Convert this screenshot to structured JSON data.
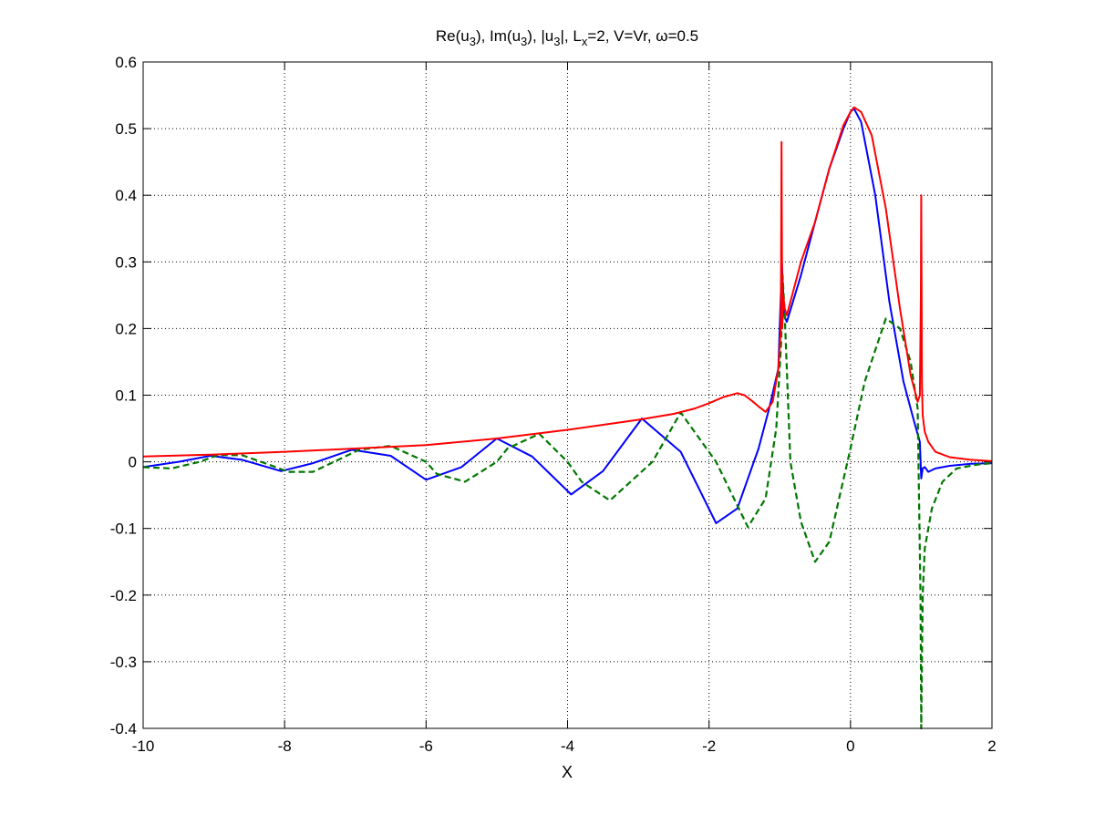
{
  "chart_data": {
    "type": "line",
    "title": {
      "parts": [
        "Re(u",
        "3",
        "), Im(u",
        "3",
        "), |u",
        "3",
        "|, L",
        "x",
        "=2,  V=Vr, ω=0.5"
      ]
    },
    "xlabel": "X",
    "ylabel": "",
    "xlim": [
      -10,
      2
    ],
    "ylim": [
      -0.4,
      0.6
    ],
    "xticks": [
      -10,
      -8,
      -6,
      -4,
      -2,
      0,
      2
    ],
    "yticks": [
      -0.4,
      -0.3,
      -0.2,
      -0.1,
      0,
      0.1,
      0.2,
      0.3,
      0.4,
      0.5,
      0.6
    ],
    "xtick_labels": [
      "-10",
      "-8",
      "-6",
      "-4",
      "-2",
      "0",
      "2"
    ],
    "ytick_labels": [
      "-0.4",
      "-0.3",
      "-0.2",
      "-0.1",
      "0",
      "0.1",
      "0.2",
      "0.3",
      "0.4",
      "0.5",
      "0.6"
    ],
    "grid": true,
    "series": [
      {
        "color": "#0000ff",
        "style": "solid",
        "x": [
          -10,
          -9.5,
          -9.05,
          -8.6,
          -8.05,
          -7.6,
          -7.05,
          -6.5,
          -6.0,
          -5.5,
          -5.0,
          -4.5,
          -3.95,
          -3.5,
          -2.95,
          -2.4,
          -1.9,
          -1.6,
          -1.3,
          -1.15,
          -1.02,
          -0.97,
          -0.94,
          -0.9,
          -0.7,
          -0.5,
          -0.3,
          -0.1,
          0.0,
          0.05,
          0.15,
          0.35,
          0.55,
          0.75,
          0.9,
          0.98,
          1.0,
          1.02,
          1.05,
          1.1,
          1.2,
          1.4,
          1.7,
          2.0
        ],
        "y": [
          -0.008,
          0.0,
          0.009,
          0.003,
          -0.014,
          -0.002,
          0.018,
          0.009,
          -0.027,
          -0.008,
          0.035,
          0.008,
          -0.049,
          -0.014,
          0.065,
          0.015,
          -0.092,
          -0.07,
          0.02,
          0.08,
          0.14,
          0.3,
          0.22,
          0.21,
          0.28,
          0.36,
          0.44,
          0.5,
          0.525,
          0.53,
          0.51,
          0.4,
          0.24,
          0.12,
          0.06,
          0.03,
          -0.025,
          -0.01,
          -0.008,
          -0.015,
          -0.01,
          -0.006,
          -0.003,
          -0.002
        ]
      },
      {
        "color": "#007700",
        "style": "dashed",
        "x": [
          -10,
          -9.6,
          -9.2,
          -8.95,
          -8.6,
          -8.2,
          -7.95,
          -7.6,
          -7.2,
          -6.95,
          -6.5,
          -6.0,
          -5.85,
          -5.45,
          -5.0,
          -4.85,
          -4.4,
          -4.0,
          -3.8,
          -3.4,
          -2.8,
          -2.4,
          -1.9,
          -1.45,
          -1.2,
          -1.05,
          -0.98,
          -0.96,
          -0.93,
          -0.85,
          -0.7,
          -0.5,
          -0.3,
          0.0,
          0.2,
          0.5,
          0.7,
          0.85,
          0.95,
          0.99,
          1.0,
          1.02,
          1.05,
          1.15,
          1.3,
          1.5,
          1.8,
          2.0
        ],
        "y": [
          -0.008,
          -0.01,
          0.0,
          0.01,
          0.01,
          -0.005,
          -0.015,
          -0.015,
          0.005,
          0.018,
          0.024,
          0.0,
          -0.018,
          -0.03,
          0.0,
          0.02,
          0.042,
          0.0,
          -0.03,
          -0.058,
          0.0,
          0.074,
          0.0,
          -0.098,
          -0.055,
          0.05,
          0.18,
          0.28,
          0.22,
          0.0,
          -0.09,
          -0.15,
          -0.12,
          0.02,
          0.12,
          0.215,
          0.2,
          0.15,
          0.08,
          -0.2,
          -0.4,
          -0.2,
          -0.13,
          -0.07,
          -0.03,
          -0.01,
          -0.004,
          -0.002
        ]
      },
      {
        "color": "#ff0000",
        "style": "solid",
        "x": [
          -10,
          -9,
          -8,
          -7,
          -6,
          -5,
          -4,
          -3,
          -2.5,
          -2.2,
          -2.0,
          -1.8,
          -1.6,
          -1.5,
          -1.4,
          -1.3,
          -1.2,
          -1.1,
          -1.02,
          -0.985,
          -0.975,
          -0.965,
          -0.95,
          -0.93,
          -0.9,
          -0.85,
          -0.7,
          -0.5,
          -0.3,
          -0.1,
          0.0,
          0.05,
          0.15,
          0.3,
          0.5,
          0.7,
          0.85,
          0.95,
          0.98,
          0.995,
          1.0,
          1.01,
          1.02,
          1.05,
          1.1,
          1.2,
          1.4,
          1.7,
          2.0
        ],
        "y": [
          0.008,
          0.011,
          0.015,
          0.02,
          0.025,
          0.035,
          0.048,
          0.063,
          0.072,
          0.08,
          0.088,
          0.097,
          0.103,
          0.1,
          0.092,
          0.083,
          0.075,
          0.09,
          0.14,
          0.2,
          0.48,
          0.2,
          0.25,
          0.23,
          0.22,
          0.24,
          0.3,
          0.36,
          0.44,
          0.505,
          0.525,
          0.532,
          0.525,
          0.49,
          0.38,
          0.23,
          0.13,
          0.09,
          0.1,
          0.25,
          0.4,
          0.12,
          0.07,
          0.045,
          0.03,
          0.015,
          0.007,
          0.003,
          0.001
        ]
      }
    ]
  }
}
